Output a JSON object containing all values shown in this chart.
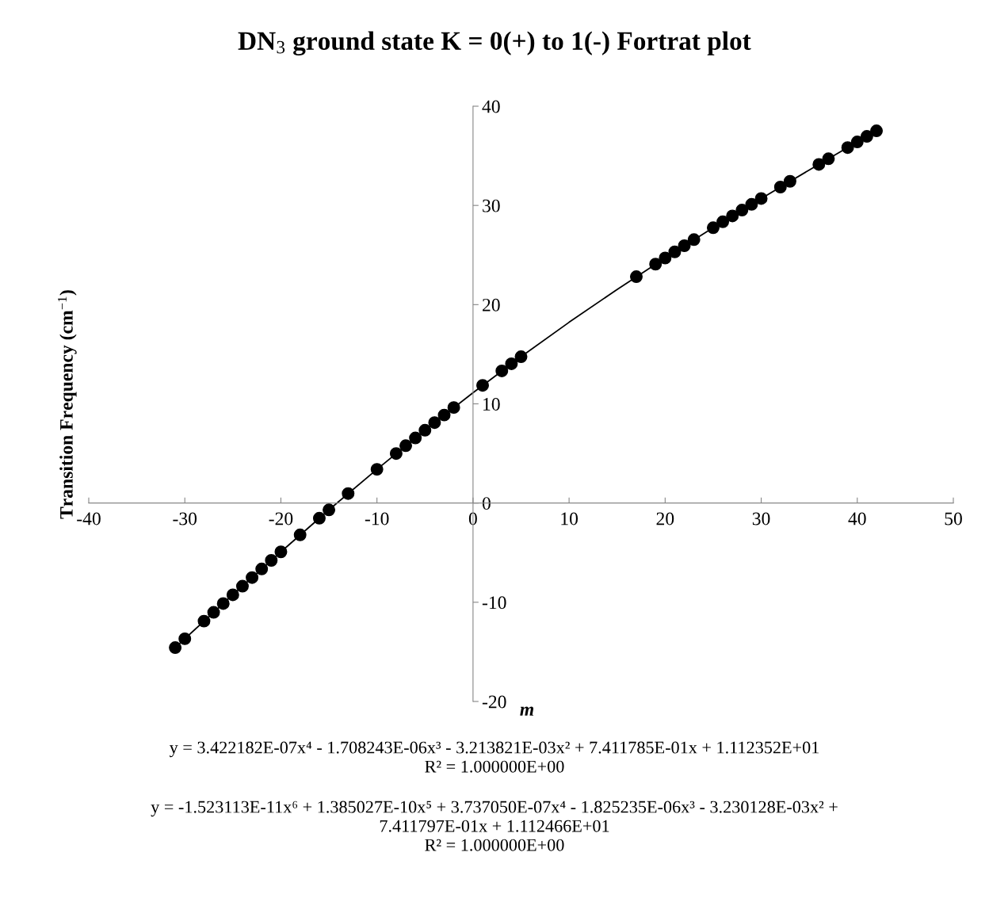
{
  "chart_data": {
    "type": "scatter",
    "title": "DN$_{3}$ ground state K = 0(+) to 1(-) Fortrat plot",
    "xlabel": "m",
    "ylabel": "Transition Frequency (cm$^{−1}$)",
    "xlim": [
      -40,
      50
    ],
    "xticks": [
      -40,
      -30,
      -20,
      -10,
      0,
      10,
      20,
      30,
      40,
      50
    ],
    "ylim": [
      -20,
      40
    ],
    "yticks": [
      -20,
      -10,
      0,
      10,
      20,
      30,
      40
    ],
    "grid": false,
    "legend": false,
    "series": [
      {
        "type": "line",
        "color": "#000000",
        "marker": "none",
        "line_style": "solid",
        "x": [
          -31,
          -25,
          -20,
          -15,
          -10,
          -5,
          0,
          5,
          10,
          15,
          20,
          25,
          30,
          35,
          40,
          42
        ],
        "values": [
          -14.57,
          -9.25,
          -4.92,
          -0.69,
          3.4,
          7.34,
          11.12,
          14.75,
          18.22,
          21.53,
          24.7,
          27.75,
          30.7,
          33.57,
          36.4,
          37.52
        ]
      },
      {
        "color": "#000000",
        "marker": "circle",
        "x": [
          -31,
          -30,
          -28,
          -27,
          -26,
          -25,
          -24,
          -23,
          -22,
          -21,
          -20,
          -18,
          -16,
          -15,
          -13,
          -10,
          -8,
          -7,
          -6,
          -5,
          -4,
          -3,
          -2,
          1,
          3,
          4,
          5,
          17,
          19,
          20,
          21,
          22,
          23,
          25,
          26,
          27,
          28,
          29,
          30,
          32,
          33,
          36,
          37,
          39,
          40,
          41,
          42
        ],
        "values": [
          -14.57,
          -13.68,
          -11.9,
          -11.02,
          -10.13,
          -9.25,
          -8.38,
          -7.51,
          -6.64,
          -5.78,
          -4.92,
          -3.21,
          -1.53,
          -0.69,
          0.96,
          3.4,
          4.99,
          5.78,
          6.56,
          7.34,
          8.11,
          8.87,
          9.63,
          11.86,
          13.32,
          14.04,
          14.75,
          22.82,
          24.08,
          24.7,
          25.32,
          25.94,
          26.55,
          27.75,
          28.35,
          28.94,
          29.53,
          30.11,
          30.7,
          31.85,
          32.43,
          34.13,
          34.7,
          35.83,
          36.4,
          36.96,
          37.52
        ]
      }
    ],
    "annotations": [
      "y = 3.422182E-07x⁴ - 1.708243E-06x³ - 3.213821E-03x² + 7.411785E-01x + 1.112352E+01\nR² = 1.000000E+00",
      "y = -1.523113E-11x⁶ + 1.385027E-10x⁵ + 3.737050E-07x⁴ - 1.825235E-06x³ - 3.230128E-03x² +\n7.411797E-01x + 1.112466E+01\nR² = 1.000000E+00"
    ]
  }
}
